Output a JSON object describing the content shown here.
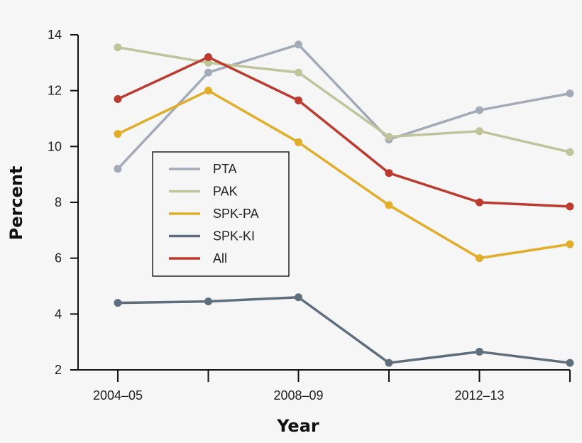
{
  "chart_data": {
    "type": "line",
    "title": "",
    "xlabel": "Year",
    "ylabel": "Percent",
    "x": [
      2004,
      2006,
      2008,
      2010,
      2012,
      2014
    ],
    "x_tick_labels": [
      "2004–05",
      "",
      "2008–09",
      "",
      "2012–13",
      ""
    ],
    "y_ticks": [
      2,
      4,
      6,
      8,
      10,
      12,
      14
    ],
    "ylim": [
      2,
      14
    ],
    "grid": false,
    "legend_position": "center-left",
    "series": [
      {
        "name": "PTA",
        "color": "#a3aab8",
        "values": [
          9.2,
          12.65,
          13.65,
          10.25,
          11.3,
          11.9
        ]
      },
      {
        "name": "PAK",
        "color": "#bfc49a",
        "values": [
          13.55,
          13.0,
          12.65,
          10.35,
          10.55,
          9.8
        ]
      },
      {
        "name": "SPK-PA",
        "color": "#e2ae2a",
        "values": [
          10.45,
          12.0,
          10.15,
          7.9,
          6.0,
          6.5
        ]
      },
      {
        "name": "SPK-KI",
        "color": "#5f6e7d",
        "values": [
          4.4,
          4.45,
          4.6,
          2.25,
          2.65,
          2.25
        ]
      },
      {
        "name": "All",
        "color": "#bc3a2e",
        "values": [
          11.7,
          13.2,
          11.65,
          9.05,
          8.0,
          7.85
        ]
      }
    ]
  }
}
